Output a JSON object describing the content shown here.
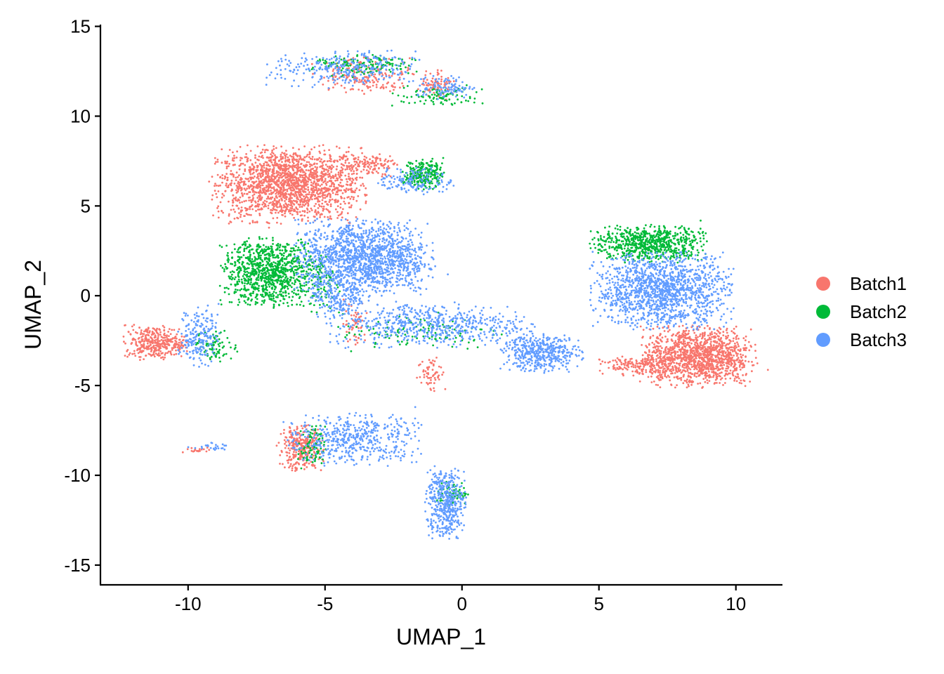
{
  "chart_data": {
    "type": "scatter",
    "title": "",
    "xlabel": "UMAP_1",
    "ylabel": "UMAP_2",
    "xlim": [
      -13.2,
      11.7
    ],
    "ylim": [
      -16.1,
      15.1
    ],
    "xticks": [
      -10,
      -5,
      0,
      5,
      10
    ],
    "yticks": [
      -15,
      -10,
      -5,
      0,
      5,
      10,
      15
    ],
    "xtick_labels": [
      "-10",
      "-5",
      "0",
      "5",
      "10"
    ],
    "ytick_labels": [
      "-15",
      "-10",
      "-5",
      "0",
      "5",
      "10",
      "15"
    ],
    "grid": false,
    "legend_position": "right",
    "series": [
      {
        "name": "Batch1",
        "color": "#F8766D",
        "clusters": [
          {
            "cx": -6.3,
            "cy": 6.2,
            "sx": 1.3,
            "sy": 1.0,
            "n": 1800
          },
          {
            "cx": -11.2,
            "cy": -2.6,
            "sx": 0.55,
            "sy": 0.45,
            "n": 350
          },
          {
            "cx": 8.6,
            "cy": -3.4,
            "sx": 1.0,
            "sy": 0.8,
            "n": 1300
          },
          {
            "cx": 6.5,
            "cy": -3.9,
            "sx": 0.7,
            "sy": 0.25,
            "n": 180
          },
          {
            "cx": -3.5,
            "cy": 12.3,
            "sx": 0.9,
            "sy": 0.5,
            "n": 200
          },
          {
            "cx": -0.9,
            "cy": 11.8,
            "sx": 0.3,
            "sy": 0.4,
            "n": 80
          },
          {
            "cx": -3.4,
            "cy": 7.3,
            "sx": 0.5,
            "sy": 0.3,
            "n": 120
          },
          {
            "cx": -5.9,
            "cy": -8.5,
            "sx": 0.4,
            "sy": 0.6,
            "n": 300
          },
          {
            "cx": -1.1,
            "cy": -4.3,
            "sx": 0.25,
            "sy": 0.5,
            "n": 60
          },
          {
            "cx": -3.9,
            "cy": -1.5,
            "sx": 0.2,
            "sy": 0.6,
            "n": 50
          },
          {
            "cx": -9.7,
            "cy": -8.6,
            "sx": 0.3,
            "sy": 0.08,
            "n": 20
          }
        ]
      },
      {
        "name": "Batch2",
        "color": "#00BA38",
        "clusters": [
          {
            "cx": -7.0,
            "cy": 1.3,
            "sx": 0.85,
            "sy": 0.9,
            "n": 1000
          },
          {
            "cx": 6.8,
            "cy": 2.9,
            "sx": 1.0,
            "sy": 0.5,
            "n": 700
          },
          {
            "cx": -1.4,
            "cy": 6.8,
            "sx": 0.35,
            "sy": 0.4,
            "n": 250
          },
          {
            "cx": -9.0,
            "cy": -2.8,
            "sx": 0.4,
            "sy": 0.4,
            "n": 90
          },
          {
            "cx": -0.8,
            "cy": 11.1,
            "sx": 0.8,
            "sy": 0.3,
            "n": 90
          },
          {
            "cx": -3.6,
            "cy": 12.8,
            "sx": 0.9,
            "sy": 0.3,
            "n": 150
          },
          {
            "cx": -5.5,
            "cy": -8.5,
            "sx": 0.25,
            "sy": 0.6,
            "n": 90
          },
          {
            "cx": -0.3,
            "cy": -11.0,
            "sx": 0.3,
            "sy": 0.3,
            "n": 60
          },
          {
            "cx": -1.5,
            "cy": -2.0,
            "sx": 1.5,
            "sy": 0.5,
            "n": 120
          },
          {
            "cx": -5.0,
            "cy": 0.8,
            "sx": 0.3,
            "sy": 0.8,
            "n": 80
          }
        ]
      },
      {
        "name": "Batch3",
        "color": "#619CFF",
        "clusters": [
          {
            "cx": -3.6,
            "cy": 2.1,
            "sx": 1.2,
            "sy": 1.0,
            "n": 1500
          },
          {
            "cx": 7.3,
            "cy": 0.3,
            "sx": 1.2,
            "sy": 1.0,
            "n": 1400
          },
          {
            "cx": 2.9,
            "cy": -3.2,
            "sx": 0.7,
            "sy": 0.5,
            "n": 450
          },
          {
            "cx": -0.6,
            "cy": -11.5,
            "sx": 0.35,
            "sy": 1.0,
            "n": 450
          },
          {
            "cx": -4.0,
            "cy": -8.0,
            "sx": 1.2,
            "sy": 0.7,
            "n": 500
          },
          {
            "cx": -9.6,
            "cy": -2.2,
            "sx": 0.35,
            "sy": 0.8,
            "n": 200
          },
          {
            "cx": -1.7,
            "cy": 6.4,
            "sx": 0.7,
            "sy": 0.35,
            "n": 150
          },
          {
            "cx": -4.3,
            "cy": 12.6,
            "sx": 1.3,
            "sy": 0.5,
            "n": 300
          },
          {
            "cx": -0.6,
            "cy": 11.6,
            "sx": 0.5,
            "sy": 0.3,
            "n": 100
          },
          {
            "cx": -1.2,
            "cy": -1.6,
            "sx": 1.8,
            "sy": 0.6,
            "n": 600
          },
          {
            "cx": -9.3,
            "cy": -8.4,
            "sx": 0.4,
            "sy": 0.1,
            "n": 25
          },
          {
            "cx": -4.5,
            "cy": 0.0,
            "sx": 0.5,
            "sy": 0.6,
            "n": 200
          }
        ]
      }
    ]
  }
}
